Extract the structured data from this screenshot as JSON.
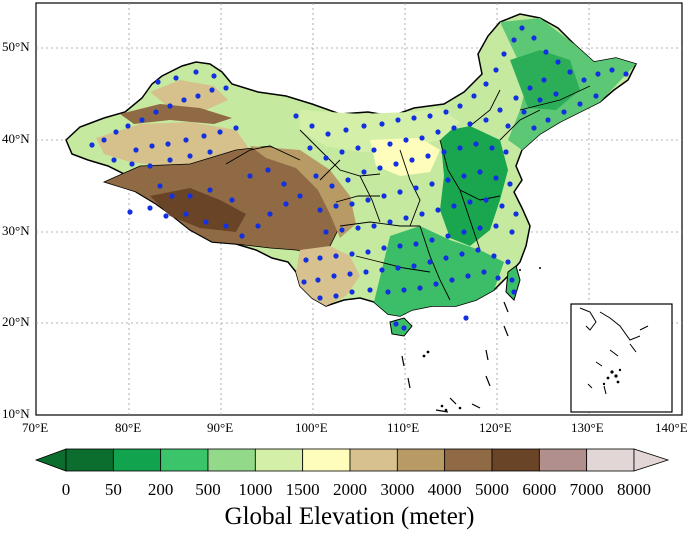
{
  "map": {
    "lat_labels": [
      "10°N",
      "20°N",
      "30°N",
      "40°N",
      "50°N"
    ],
    "lon_labels": [
      "70°E",
      "80°E",
      "90°E",
      "100°E",
      "110°E",
      "120°E",
      "130°E",
      "140°E"
    ]
  },
  "colorbar": {
    "tick_labels": [
      "0",
      "50",
      "200",
      "500",
      "1000",
      "1500",
      "2000",
      "3000",
      "4000",
      "5000",
      "6000",
      "7000",
      "8000"
    ],
    "colors": [
      "#0b6e2e",
      "#12a34e",
      "#3cc46a",
      "#93d98a",
      "#d4f0a8",
      "#fffdbb",
      "#d7c18f",
      "#b79a64",
      "#8f6a45",
      "#6a4426",
      "#b08f8d",
      "#e2d7d6"
    ]
  },
  "title": "Global Elevation (meter)",
  "colors": {
    "station_dot": "#1330e0",
    "border": "#000000",
    "grid": "#9a9a9a"
  }
}
